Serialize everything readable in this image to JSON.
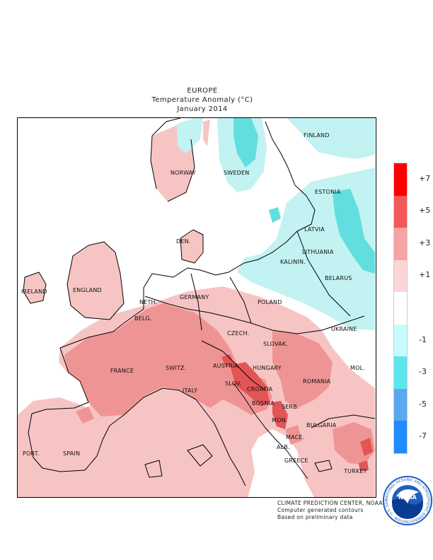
{
  "title": {
    "region": "EUROPE",
    "quantity": "Temperature Anomaly (°C)",
    "period": "January 2014"
  },
  "map": {
    "background": "#ffffff",
    "colors": {
      "warm_1_3": "#f7c4c4",
      "warm_3_5": "#ef9494",
      "warm_5_7": "#e25555",
      "cold_1_3": "#c2f2f2",
      "cold_3_5": "#63dede"
    },
    "country_labels": [
      {
        "name": "FINLAND"
      },
      {
        "name": "NORWAY"
      },
      {
        "name": "SWEDEN"
      },
      {
        "name": "ESTONIA"
      },
      {
        "name": "LATVIA"
      },
      {
        "name": "LITHUANIA"
      },
      {
        "name": "KALININ."
      },
      {
        "name": "BELARUS"
      },
      {
        "name": "DEN."
      },
      {
        "name": "IRELAND"
      },
      {
        "name": "ENGLAND"
      },
      {
        "name": "NETH."
      },
      {
        "name": "BELG."
      },
      {
        "name": "GERMANY"
      },
      {
        "name": "POLAND"
      },
      {
        "name": "UKRAINE"
      },
      {
        "name": "CZECH."
      },
      {
        "name": "SLOVAK."
      },
      {
        "name": "MOL."
      },
      {
        "name": "FRANCE"
      },
      {
        "name": "SWITZ."
      },
      {
        "name": "AUSTRIA"
      },
      {
        "name": "HUNGARY"
      },
      {
        "name": "ROMANIA"
      },
      {
        "name": "SLOV."
      },
      {
        "name": "CROATIA"
      },
      {
        "name": "ITALY"
      },
      {
        "name": "BOSNIA"
      },
      {
        "name": "SERB."
      },
      {
        "name": "MON."
      },
      {
        "name": "BULGARIA"
      },
      {
        "name": "MACE."
      },
      {
        "name": "ALB."
      },
      {
        "name": "GREECE"
      },
      {
        "name": "PORT."
      },
      {
        "name": "SPAIN"
      },
      {
        "name": "TURKEY"
      }
    ]
  },
  "legend": {
    "items": [
      {
        "label": "+7",
        "color": "#ff0000"
      },
      {
        "label": "+5",
        "color": "#f55858"
      },
      {
        "label": "+3",
        "color": "#f7a3a3"
      },
      {
        "label": "+1",
        "color": "#fcd6d6"
      },
      {
        "label": "",
        "color": "#ffffff"
      },
      {
        "label": "-1",
        "color": "#c8fcfc"
      },
      {
        "label": "-3",
        "color": "#5ee6ee"
      },
      {
        "label": "-5",
        "color": "#5aa8f2"
      },
      {
        "label": "-7",
        "color": "#1f8cff"
      }
    ]
  },
  "credits": {
    "line1": "CLIMATE PREDICTION CENTER, NOAA",
    "line2": "Computer generated contours",
    "line3": "Based on preliminary data"
  },
  "logo": {
    "text": "NOAA",
    "ring_text": "NATIONAL OCEANIC AND ATMOSPHERIC ADMINISTRATION · U.S. DEPARTMENT OF COMMERCE"
  }
}
